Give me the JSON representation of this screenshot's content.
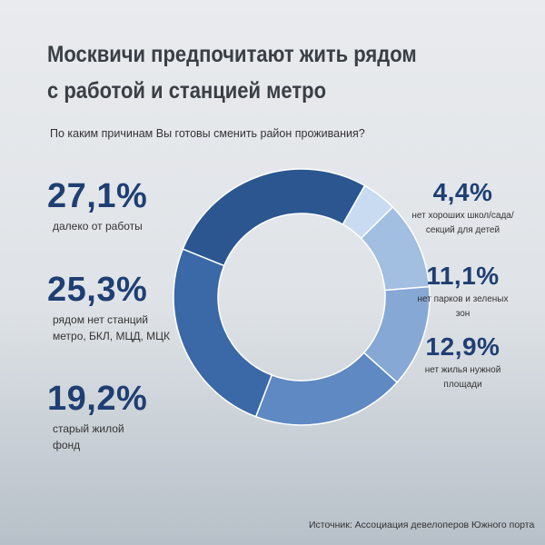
{
  "chart_data": {
    "type": "pie",
    "donut": true,
    "title": "Москвичи предпочитают жить рядом с работой и станцией метро",
    "subtitle": "По каким причинам Вы готовы сменить район проживания?",
    "source": "Источник: Ассоциация девелоперов Южного порта",
    "categories": [
      "далеко от работы",
      "нет хороших школ/сада/секций для детей",
      "нет парков и зеленых зон",
      "нет жилья нужной площади",
      "старый жилой фонд",
      "рядом нет станций метро, БКЛ, МЦД, МЦК"
    ],
    "values": [
      27.1,
      4.4,
      11.1,
      12.9,
      19.2,
      25.3
    ],
    "value_labels": [
      "27,1%",
      "4,4%",
      "11,1%",
      "12,9%",
      "19,2%",
      "25,3%"
    ],
    "colors": [
      "#2b5690",
      "#c8dbf0",
      "#a2bee0",
      "#86a8d5",
      "#5e89c2",
      "#3b68a6"
    ]
  }
}
